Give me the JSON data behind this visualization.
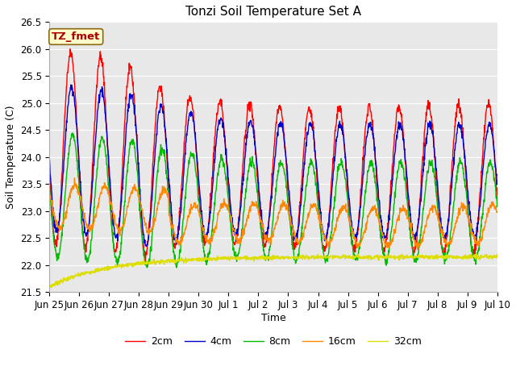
{
  "title": "Tonzi Soil Temperature Set A",
  "ylabel": "Soil Temperature (C)",
  "xlabel": "Time",
  "ylim": [
    21.5,
    26.5
  ],
  "yticks": [
    21.5,
    22.0,
    22.5,
    23.0,
    23.5,
    24.0,
    24.5,
    25.0,
    25.5,
    26.0,
    26.5
  ],
  "annotation_text": "TZ_fmet",
  "annotation_bg": "#ffffcc",
  "annotation_border": "#8b6914",
  "annotation_text_color": "#aa0000",
  "plot_bg": "#e8e8e8",
  "line_colors": [
    "#ff0000",
    "#0000cc",
    "#00bb00",
    "#ff8800",
    "#dddd00"
  ],
  "line_labels": [
    "2cm",
    "4cm",
    "8cm",
    "16cm",
    "32cm"
  ],
  "line_width": 1.0,
  "title_fontsize": 11,
  "label_fontsize": 9,
  "tick_fontsize": 8.5,
  "legend_fontsize": 9
}
